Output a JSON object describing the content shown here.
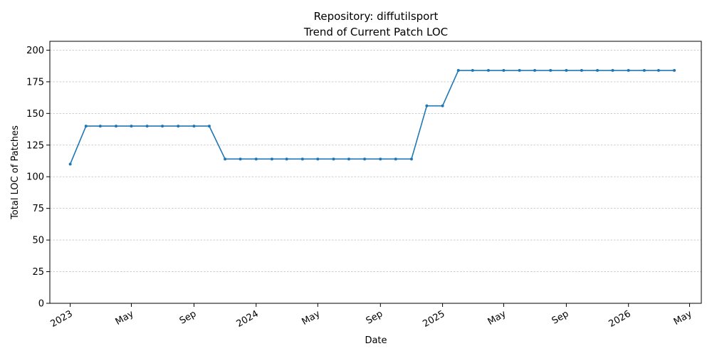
{
  "chart_data": {
    "type": "line",
    "title_line1": "Repository: diffutilsport",
    "title_line2": "Trend of Current Patch LOC",
    "xlabel": "Date",
    "ylabel": "Total LOC of Patches",
    "ylim": [
      0,
      207
    ],
    "xlim": [
      "2022-11-22",
      "2026-05-24"
    ],
    "grid": "horizontal dashed",
    "line_color": "#1f77b4",
    "y_ticks": [
      0,
      25,
      50,
      75,
      100,
      125,
      150,
      175,
      200
    ],
    "x_ticks": [
      {
        "date": "2023-01-01",
        "label": "2023"
      },
      {
        "date": "2023-05-01",
        "label": "May"
      },
      {
        "date": "2023-09-01",
        "label": "Sep"
      },
      {
        "date": "2024-01-01",
        "label": "2024"
      },
      {
        "date": "2024-05-01",
        "label": "May"
      },
      {
        "date": "2024-09-01",
        "label": "Sep"
      },
      {
        "date": "2025-01-01",
        "label": "2025"
      },
      {
        "date": "2025-05-01",
        "label": "May"
      },
      {
        "date": "2025-09-01",
        "label": "Sep"
      },
      {
        "date": "2026-01-01",
        "label": "2026"
      },
      {
        "date": "2026-05-01",
        "label": "May"
      }
    ],
    "series": [
      {
        "x": [
          "2023-01-01",
          "2023-02-01",
          "2023-03-01",
          "2023-04-01",
          "2023-05-01",
          "2023-06-01",
          "2023-07-01",
          "2023-08-01",
          "2023-09-01",
          "2023-10-01",
          "2023-11-01",
          "2023-12-01",
          "2024-01-01",
          "2024-02-01",
          "2024-03-01",
          "2024-04-01",
          "2024-05-01",
          "2024-06-01",
          "2024-07-01",
          "2024-08-01",
          "2024-09-01",
          "2024-10-01",
          "2024-11-01",
          "2024-12-01",
          "2025-01-01",
          "2025-02-01",
          "2025-03-01",
          "2025-04-01",
          "2025-05-01",
          "2025-06-01",
          "2025-07-01",
          "2025-08-01",
          "2025-09-01",
          "2025-10-01",
          "2025-11-01",
          "2025-12-01",
          "2026-01-01",
          "2026-02-01",
          "2026-03-01",
          "2026-04-01"
        ],
        "values": [
          110,
          140,
          140,
          140,
          140,
          140,
          140,
          140,
          140,
          140,
          114,
          114,
          114,
          114,
          114,
          114,
          114,
          114,
          114,
          114,
          114,
          114,
          114,
          156,
          156,
          184,
          184,
          184,
          184,
          184,
          184,
          184,
          184,
          184,
          184,
          184,
          184,
          184,
          184,
          184
        ]
      }
    ]
  }
}
